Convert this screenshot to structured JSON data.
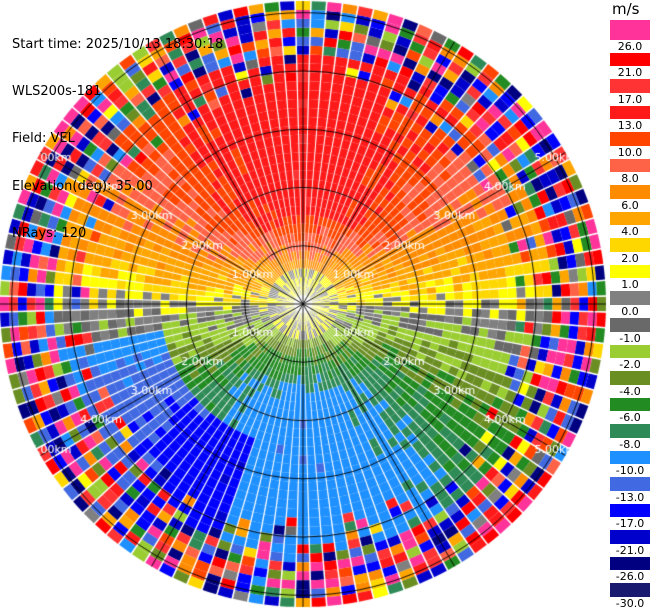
{
  "header": {
    "start_time": "Start time: 2025/10/13 18:30:18",
    "instrument": "WLS200s-181",
    "field": "Field: VEL",
    "elevation": "Elevation(deg): 35.00",
    "nrays": "NRays: 120"
  },
  "colorbar": {
    "title": "m/s",
    "labels": [
      "26.0",
      "21.0",
      "17.0",
      "13.0",
      "10.0",
      "8.0",
      "6.0",
      "4.0",
      "2.0",
      "1.0",
      "0.0",
      "-1.0",
      "-2.0",
      "-4.0",
      "-6.0",
      "-8.0",
      "-10.0",
      "-13.0",
      "-17.0",
      "-21.0",
      "-26.0",
      "-30.0"
    ],
    "colors": [
      "#ff3399",
      "#ff0000",
      "#ff3333",
      "#ff1a1a",
      "#ff4500",
      "#ff6347",
      "#ff8c00",
      "#ffa500",
      "#ffd700",
      "#ffff00",
      "#808080",
      "#696969",
      "#9acd32",
      "#6b8e23",
      "#228b22",
      "#2e8b57",
      "#1e90ff",
      "#4169e1",
      "#0000ff",
      "#0000cd",
      "#000080",
      "#191970"
    ]
  },
  "chart_data": {
    "type": "heatmap",
    "projection": "polar PPI",
    "title": "",
    "field": "VEL",
    "units": "m/s",
    "range_rings_km": [
      1.0,
      2.0,
      3.0,
      4.0,
      5.0
    ],
    "ring_labels": [
      "1.00km",
      "2.00km",
      "3.00km",
      "4.00km",
      "5.00km"
    ],
    "nrays": 120,
    "max_range_km": 5.2,
    "valid_range_km": 4.2,
    "velocity_pattern": {
      "north_sector": "positive 8 to 13 m/s",
      "east_west_center": "0 to 4 m/s",
      "south_sector": "negative -6 to -17 m/s",
      "southwest_edge": "-21 to -30 m/s",
      "beyond_4km": "noise"
    },
    "grid": true
  }
}
